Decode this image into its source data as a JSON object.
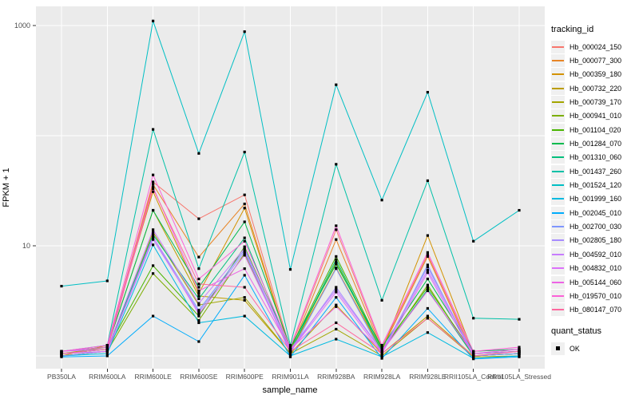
{
  "chart_data": {
    "type": "line",
    "xlabel": "sample_name",
    "ylabel": "FPKM + 1",
    "legend_title": "tracking_id",
    "x_categories": [
      "PB350LA",
      "RRIM600LA",
      "RRIM600LE",
      "RRIM600SE",
      "RRIM600PE",
      "RRIM901LA",
      "RRIM928BA",
      "RRIM928LA",
      "RRIM928LE",
      "RRII105LA_Control",
      "RRII105LA_Stressed"
    ],
    "y_scale": "log10",
    "y_ticks": [
      {
        "value": 10,
        "label": "10"
      },
      {
        "value": 1000,
        "label": "1000"
      }
    ],
    "y_gridlines": [
      1,
      10,
      100,
      1000
    ],
    "ylim": [
      0.75,
      1500
    ],
    "grid": true,
    "legend_position": "right",
    "panel_bg": "#ebebeb",
    "gridline_color": "#ffffff",
    "point_color": "#000000",
    "point_shape": "filled-square",
    "axis_text_color": "#4d4d4d",
    "series": [
      {
        "name": "Hb_000024_150",
        "color": "#F8766D",
        "values": [
          1.1,
          1.2,
          38,
          17.6,
          29,
          1.15,
          14.0,
          1.2,
          8.3,
          1.05,
          1.1
        ]
      },
      {
        "name": "Hb_000077_300",
        "color": "#E88526",
        "values": [
          1.05,
          1.15,
          36,
          7.9,
          24,
          1.1,
          11.4,
          1.15,
          8.0,
          1.0,
          1.05
        ]
      },
      {
        "name": "Hb_000359_180",
        "color": "#D39200",
        "values": [
          1.0,
          1.25,
          31,
          3.7,
          22,
          1.1,
          6.3,
          1.1,
          12.4,
          1.05,
          1.1
        ]
      },
      {
        "name": "Hb_000732_220",
        "color": "#BC9D00",
        "values": [
          1.05,
          1.2,
          21,
          3.5,
          3.2,
          1.05,
          2.9,
          1.05,
          2.3,
          1.0,
          1.05
        ]
      },
      {
        "name": "Hb_000739_170",
        "color": "#A3A500",
        "values": [
          1.0,
          1.1,
          13.3,
          2.9,
          3.4,
          1.05,
          1.75,
          1.0,
          2.2,
          0.98,
          1.0
        ]
      },
      {
        "name": "Hb_000941_010",
        "color": "#7CAE00",
        "values": [
          1.0,
          1.1,
          5.6,
          2.1,
          8.5,
          1.1,
          7.1,
          1.1,
          4.4,
          1.0,
          1.05
        ]
      },
      {
        "name": "Hb_001104_020",
        "color": "#49B500",
        "values": [
          1.05,
          1.15,
          6.6,
          2.3,
          9.8,
          1.15,
          8.0,
          1.15,
          4.2,
          1.05,
          1.1
        ]
      },
      {
        "name": "Hb_001284_070",
        "color": "#00BB4E",
        "values": [
          1.1,
          1.2,
          21,
          4.2,
          16.5,
          1.2,
          6.8,
          1.2,
          5.0,
          1.1,
          1.15
        ]
      },
      {
        "name": "Hb_001310_060",
        "color": "#00BF7D",
        "values": [
          1.05,
          1.15,
          12.6,
          3.3,
          11.8,
          1.1,
          7.5,
          1.1,
          4.0,
          1.0,
          1.05
        ]
      },
      {
        "name": "Hb_001437_260",
        "color": "#00C1A7",
        "values": [
          1.1,
          1.25,
          114,
          6.2,
          71,
          1.25,
          55,
          3.2,
          39,
          2.2,
          2.15
        ]
      },
      {
        "name": "Hb_001524_120",
        "color": "#00BFC4",
        "values": [
          4.3,
          4.8,
          1100,
          69,
          880,
          6.1,
          290,
          26,
          248,
          11.0,
          21.0
        ]
      },
      {
        "name": "Hb_001999_160",
        "color": "#00BAE0",
        "values": [
          1.0,
          1.05,
          10.2,
          2.0,
          2.3,
          1.0,
          1.42,
          0.98,
          1.63,
          0.95,
          1.0
        ]
      },
      {
        "name": "Hb_002045_010",
        "color": "#00ACFC",
        "values": [
          0.98,
          1.0,
          2.3,
          1.35,
          5.4,
          0.98,
          3.4,
          0.95,
          2.7,
          0.94,
          0.98
        ]
      },
      {
        "name": "Hb_002700_030",
        "color": "#7F96FF",
        "values": [
          1.0,
          1.1,
          12.0,
          2.6,
          9.2,
          1.05,
          6.2,
          1.05,
          6.7,
          1.0,
          1.05
        ]
      },
      {
        "name": "Hb_002805_180",
        "color": "#A78CFF",
        "values": [
          1.05,
          1.1,
          11.4,
          2.5,
          8.8,
          1.1,
          4.2,
          1.1,
          6.4,
          1.05,
          1.1
        ]
      },
      {
        "name": "Hb_004592_010",
        "color": "#C77CFF",
        "values": [
          1.1,
          1.15,
          14.0,
          3.0,
          9.5,
          1.15,
          4.0,
          1.1,
          6.0,
          1.05,
          1.15
        ]
      },
      {
        "name": "Hb_004832_010",
        "color": "#DC71FA",
        "values": [
          1.05,
          1.1,
          12.0,
          2.4,
          8.2,
          1.1,
          3.8,
          1.05,
          5.7,
          1.0,
          1.1
        ]
      },
      {
        "name": "Hb_005144_060",
        "color": "#ED63E5",
        "values": [
          1.1,
          1.2,
          34,
          3.9,
          6.2,
          1.15,
          2.8,
          1.1,
          3.9,
          1.05,
          1.15
        ]
      },
      {
        "name": "Hb_019570_010",
        "color": "#FB61D7",
        "values": [
          1.1,
          1.25,
          44,
          5.0,
          11.0,
          1.2,
          15.2,
          1.25,
          8.7,
          1.1,
          1.2
        ]
      },
      {
        "name": "Hb_080147_070",
        "color": "#FF689E",
        "values": [
          1.05,
          1.15,
          33,
          4.5,
          4.2,
          1.1,
          2.0,
          1.05,
          2.2,
          1.0,
          1.1
        ]
      }
    ],
    "quant_legend": {
      "title": "quant_status",
      "items": [
        {
          "label": "OK",
          "symbol": "filled-square",
          "color": "#000000"
        }
      ]
    }
  }
}
